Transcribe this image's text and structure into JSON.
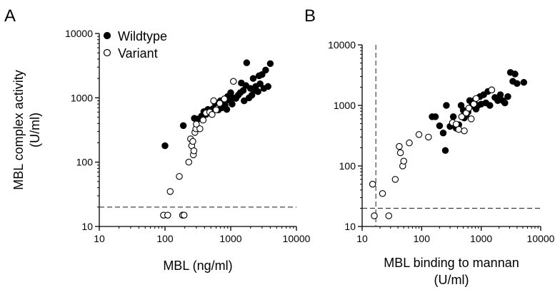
{
  "chart_data": [
    {
      "panel_label": "A",
      "type": "scatter",
      "xlabel": "MBL (ng/ml)",
      "xlabel_lines": [
        "MBL (ng/ml)"
      ],
      "ylabel": "MBL complex activity (U/ml)",
      "ylabel_lines": [
        "MBL complex activity",
        "(U/ml)"
      ],
      "xscale": "log",
      "yscale": "log",
      "xlim": [
        10,
        10000
      ],
      "ylim": [
        10,
        10000
      ],
      "x_ticks": [
        10,
        100,
        1000,
        10000
      ],
      "y_ticks": [
        10,
        100,
        1000,
        10000
      ],
      "x_tick_labels": [
        "10",
        "100",
        "1000",
        "10000"
      ],
      "y_tick_labels": [
        "10",
        "100",
        "1000",
        "10000"
      ],
      "legend_position": "top-left",
      "reference_lines": [
        {
          "orientation": "horizontal",
          "value": 20,
          "style": "dashed"
        }
      ],
      "grid": false,
      "series": [
        {
          "name": "Wildtype",
          "marker": "filled-circle",
          "points": [
            [
              100,
              180
            ],
            [
              190,
              370
            ],
            [
              280,
              480
            ],
            [
              320,
              470
            ],
            [
              360,
              520
            ],
            [
              390,
              610
            ],
            [
              420,
              550
            ],
            [
              450,
              660
            ],
            [
              500,
              600
            ],
            [
              540,
              680
            ],
            [
              580,
              830
            ],
            [
              650,
              650
            ],
            [
              700,
              900
            ],
            [
              740,
              700
            ],
            [
              780,
              720
            ],
            [
              820,
              770
            ],
            [
              870,
              660
            ],
            [
              900,
              1050
            ],
            [
              950,
              920
            ],
            [
              1000,
              1200
            ],
            [
              1050,
              800
            ],
            [
              1100,
              1000
            ],
            [
              1200,
              980
            ],
            [
              1300,
              1100
            ],
            [
              1400,
              1200
            ],
            [
              1450,
              1700
            ],
            [
              1550,
              1300
            ],
            [
              1600,
              900
            ],
            [
              1700,
              1550
            ],
            [
              1750,
              3500
            ],
            [
              1900,
              1000
            ],
            [
              2000,
              1400
            ],
            [
              2100,
              1100
            ],
            [
              2200,
              2000
            ],
            [
              2300,
              1300
            ],
            [
              2400,
              1500
            ],
            [
              2600,
              1250
            ],
            [
              2700,
              2200
            ],
            [
              2800,
              1650
            ],
            [
              3000,
              2300
            ],
            [
              3200,
              1400
            ],
            [
              3400,
              2700
            ],
            [
              3700,
              1500
            ],
            [
              4000,
              3400
            ]
          ]
        },
        {
          "name": "Variant",
          "marker": "open-circle",
          "points": [
            [
              95,
              15
            ],
            [
              110,
              15
            ],
            [
              120,
              35
            ],
            [
              165,
              60
            ],
            [
              185,
              15
            ],
            [
              195,
              15
            ],
            [
              230,
              100
            ],
            [
              245,
              230
            ],
            [
              255,
              180
            ],
            [
              265,
              210
            ],
            [
              270,
              130
            ],
            [
              275,
              150
            ],
            [
              285,
              290
            ],
            [
              295,
              330
            ],
            [
              300,
              390
            ],
            [
              340,
              330
            ],
            [
              380,
              450
            ],
            [
              420,
              580
            ],
            [
              480,
              600
            ],
            [
              520,
              550
            ],
            [
              550,
              900
            ],
            [
              600,
              650
            ],
            [
              680,
              820
            ],
            [
              800,
              960
            ],
            [
              1100,
              1800
            ]
          ]
        }
      ]
    },
    {
      "panel_label": "B",
      "type": "scatter",
      "xlabel": "MBL binding to mannan (U/ml)",
      "xlabel_lines": [
        "MBL binding to mannan",
        "(U/ml)"
      ],
      "ylabel": "",
      "xscale": "log",
      "yscale": "log",
      "xlim": [
        10,
        10000
      ],
      "ylim": [
        10,
        10000
      ],
      "x_ticks": [
        10,
        100,
        1000,
        10000
      ],
      "y_ticks": [
        10,
        100,
        1000,
        10000
      ],
      "x_tick_labels": [
        "10",
        "100",
        "1000",
        "10000"
      ],
      "y_tick_labels": [
        "10",
        "100",
        "1000",
        "10000"
      ],
      "reference_lines": [
        {
          "orientation": "horizontal",
          "value": 20,
          "style": "dashed"
        },
        {
          "orientation": "vertical",
          "value": 17,
          "style": "dashed"
        }
      ],
      "grid": false,
      "series": [
        {
          "name": "Wildtype",
          "marker": "filled-circle",
          "points": [
            [
              150,
              650
            ],
            [
              170,
              650
            ],
            [
              200,
              460
            ],
            [
              230,
              350
            ],
            [
              250,
              180
            ],
            [
              260,
              1000
            ],
            [
              300,
              450
            ],
            [
              340,
              650
            ],
            [
              380,
              420
            ],
            [
              420,
              480
            ],
            [
              460,
              1000
            ],
            [
              500,
              830
            ],
            [
              520,
              620
            ],
            [
              560,
              700
            ],
            [
              600,
              780
            ],
            [
              640,
              1200
            ],
            [
              700,
              980
            ],
            [
              760,
              1200
            ],
            [
              820,
              870
            ],
            [
              880,
              1000
            ],
            [
              950,
              1400
            ],
            [
              1000,
              1050
            ],
            [
              1100,
              1500
            ],
            [
              1200,
              1100
            ],
            [
              1300,
              1700
            ],
            [
              1400,
              1000
            ],
            [
              1500,
              1800
            ],
            [
              1700,
              1350
            ],
            [
              1900,
              1200
            ],
            [
              2100,
              1500
            ],
            [
              2300,
              1200
            ],
            [
              2500,
              1100
            ],
            [
              2800,
              1400
            ],
            [
              3100,
              3500
            ],
            [
              3400,
              2500
            ],
            [
              3700,
              3300
            ],
            [
              4000,
              2300
            ],
            [
              5200,
              2400
            ]
          ]
        },
        {
          "name": "Variant",
          "marker": "open-circle",
          "points": [
            [
              15,
              50
            ],
            [
              16,
              15
            ],
            [
              22,
              35
            ],
            [
              28,
              15
            ],
            [
              36,
              60
            ],
            [
              42,
              210
            ],
            [
              44,
              165
            ],
            [
              48,
              100
            ],
            [
              50,
              120
            ],
            [
              62,
              240
            ],
            [
              90,
              330
            ],
            [
              130,
              300
            ],
            [
              330,
              520
            ],
            [
              380,
              490
            ],
            [
              420,
              400
            ],
            [
              470,
              650
            ],
            [
              520,
              380
            ],
            [
              560,
              750
            ],
            [
              620,
              900
            ],
            [
              680,
              600
            ],
            [
              750,
              1050
            ],
            [
              820,
              1300
            ],
            [
              1500,
              1800
            ]
          ]
        }
      ]
    }
  ]
}
